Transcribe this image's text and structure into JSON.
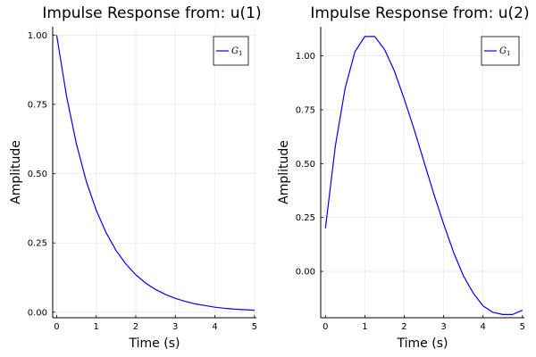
{
  "chart_data": [
    {
      "type": "line",
      "title": "Impulse Response from: u(1)",
      "xlabel": "Time (s)",
      "ylabel": "Amplitude",
      "xlim": [
        -0.1,
        5.05
      ],
      "ylim": [
        -0.02,
        1.03
      ],
      "xticks": [
        0,
        1,
        2,
        3,
        4,
        5
      ],
      "xtick_labels": [
        "0",
        "1",
        "2",
        "3",
        "4",
        "5"
      ],
      "yticks": [
        0.0,
        0.25,
        0.5,
        0.75,
        1.0
      ],
      "ytick_labels": [
        "0.00",
        "0.25",
        "0.50",
        "0.75",
        "1.00"
      ],
      "grid": true,
      "legend_position": "top-right",
      "series": [
        {
          "name": "G",
          "name_subscript": "1",
          "color": "#0000ff",
          "x": [
            0,
            0.25,
            0.5,
            0.75,
            1.0,
            1.25,
            1.5,
            1.75,
            2.0,
            2.25,
            2.5,
            2.75,
            3.0,
            3.25,
            3.5,
            3.75,
            4.0,
            4.25,
            4.5,
            4.75,
            5.0
          ],
          "y": [
            1.0,
            0.779,
            0.607,
            0.472,
            0.368,
            0.287,
            0.223,
            0.174,
            0.135,
            0.105,
            0.082,
            0.064,
            0.05,
            0.039,
            0.03,
            0.024,
            0.018,
            0.014,
            0.011,
            0.009,
            0.007
          ]
        }
      ]
    },
    {
      "type": "line",
      "title": "Impulse Response from: u(2)",
      "xlabel": "Time (s)",
      "ylabel": "Amplitude",
      "xlim": [
        -0.12,
        5.05
      ],
      "ylim": [
        -0.215,
        1.135
      ],
      "xticks": [
        0,
        1,
        2,
        3,
        4,
        5
      ],
      "xtick_labels": [
        "0",
        "1",
        "2",
        "3",
        "4",
        "5"
      ],
      "yticks": [
        0.0,
        0.25,
        0.5,
        0.75,
        1.0
      ],
      "ytick_labels": [
        "0.00",
        "0.25",
        "0.50",
        "0.75",
        "1.00"
      ],
      "grid": true,
      "legend_position": "top-right",
      "series": [
        {
          "name": "G",
          "name_subscript": "1",
          "color": "#0000ff",
          "x": [
            0,
            0.25,
            0.5,
            0.75,
            1.0,
            1.25,
            1.5,
            1.75,
            2.0,
            2.25,
            2.5,
            2.75,
            3.0,
            3.25,
            3.5,
            3.75,
            4.0,
            4.25,
            4.5,
            4.75,
            5.0
          ],
          "y": [
            0.2,
            0.58,
            0.85,
            1.02,
            1.09,
            1.09,
            1.03,
            0.93,
            0.8,
            0.66,
            0.51,
            0.36,
            0.22,
            0.09,
            -0.02,
            -0.1,
            -0.16,
            -0.19,
            -0.2,
            -0.2,
            -0.18
          ]
        }
      ]
    }
  ]
}
